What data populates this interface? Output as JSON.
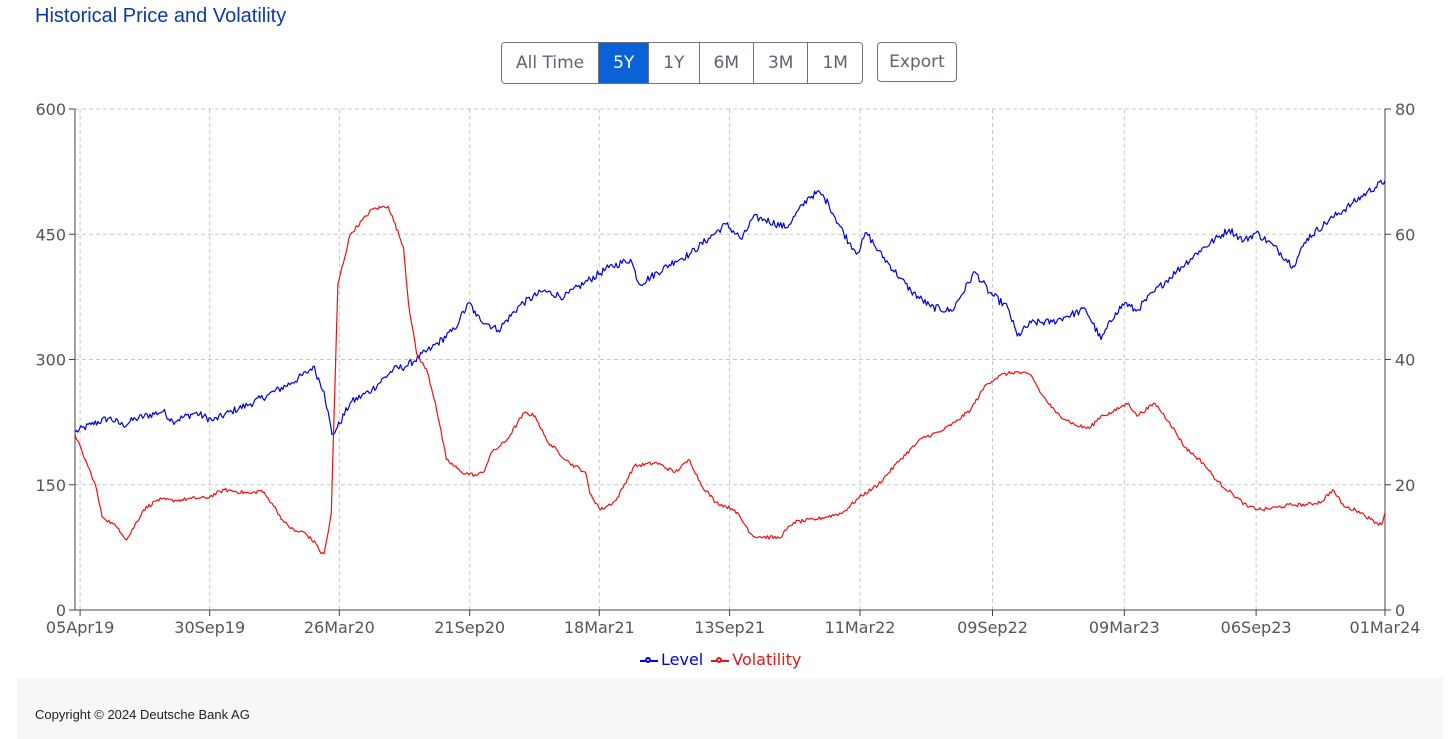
{
  "page": {
    "title": "Historical Price and Volatility"
  },
  "toolbar": {
    "ranges": [
      {
        "label": "All Time",
        "active": false
      },
      {
        "label": "5Y",
        "active": true
      },
      {
        "label": "1Y",
        "active": false
      },
      {
        "label": "6M",
        "active": false
      },
      {
        "label": "3M",
        "active": false
      },
      {
        "label": "1M",
        "active": false
      }
    ],
    "export_label": "Export"
  },
  "footer": {
    "copyright": "Copyright © 2024 Deutsche Bank AG"
  },
  "colors": {
    "level": "#0000dd",
    "volatility": "#ee1111",
    "active_button": "#0b62d6",
    "title": "#0a3aa8"
  },
  "chart_data": {
    "type": "line",
    "title": "Historical Price and Volatility",
    "x_type": "date",
    "x_range": [
      "2019-03-29",
      "2024-03-01"
    ],
    "x_ticks": [
      {
        "date": "2019-04-05",
        "label": "05Apr19"
      },
      {
        "date": "2019-09-30",
        "label": "30Sep19"
      },
      {
        "date": "2020-03-26",
        "label": "26Mar20"
      },
      {
        "date": "2020-09-21",
        "label": "21Sep20"
      },
      {
        "date": "2021-03-18",
        "label": "18Mar21"
      },
      {
        "date": "2021-09-13",
        "label": "13Sep21"
      },
      {
        "date": "2022-03-11",
        "label": "11Mar22"
      },
      {
        "date": "2022-09-09",
        "label": "09Sep22"
      },
      {
        "date": "2023-03-09",
        "label": "09Mar23"
      },
      {
        "date": "2023-09-06",
        "label": "06Sep23"
      },
      {
        "date": "2024-03-01",
        "label": "01Mar24"
      }
    ],
    "y_left": {
      "range": [
        0,
        600
      ],
      "ticks": [
        0,
        150,
        300,
        450,
        600
      ]
    },
    "y_right": {
      "range": [
        0,
        80
      ],
      "ticks": [
        0,
        20,
        40,
        60,
        80
      ]
    },
    "grid": true,
    "legend_position": "bottom-center",
    "series": [
      {
        "name": "Level",
        "axis": "left",
        "points": [
          [
            "2019-03-29",
            213
          ],
          [
            "2019-04-20",
            222
          ],
          [
            "2019-05-15",
            230
          ],
          [
            "2019-06-03",
            221
          ],
          [
            "2019-06-20",
            229
          ],
          [
            "2019-07-28",
            238
          ],
          [
            "2019-08-10",
            226
          ],
          [
            "2019-09-10",
            236
          ],
          [
            "2019-10-05",
            227
          ],
          [
            "2019-10-30",
            238
          ],
          [
            "2019-11-25",
            247
          ],
          [
            "2019-12-20",
            258
          ],
          [
            "2020-01-20",
            272
          ],
          [
            "2020-02-10",
            284
          ],
          [
            "2020-02-19",
            292
          ],
          [
            "2020-03-05",
            262
          ],
          [
            "2020-03-16",
            210
          ],
          [
            "2020-03-23",
            218
          ],
          [
            "2020-04-10",
            248
          ],
          [
            "2020-05-10",
            264
          ],
          [
            "2020-06-08",
            288
          ],
          [
            "2020-06-26",
            292
          ],
          [
            "2020-07-31",
            314
          ],
          [
            "2020-08-31",
            336
          ],
          [
            "2020-09-08",
            350
          ],
          [
            "2020-09-21",
            368
          ],
          [
            "2020-09-30",
            352
          ],
          [
            "2020-10-30",
            335
          ],
          [
            "2020-11-30",
            366
          ],
          [
            "2020-12-31",
            382
          ],
          [
            "2021-01-29",
            375
          ],
          [
            "2021-02-26",
            392
          ],
          [
            "2021-03-31",
            410
          ],
          [
            "2021-04-30",
            420
          ],
          [
            "2021-05-12",
            390
          ],
          [
            "2021-06-30",
            418
          ],
          [
            "2021-07-20",
            426
          ],
          [
            "2021-08-15",
            445
          ],
          [
            "2021-09-08",
            462
          ],
          [
            "2021-09-30",
            444
          ],
          [
            "2021-10-15",
            470
          ],
          [
            "2021-10-30",
            468
          ],
          [
            "2021-11-30",
            458
          ],
          [
            "2021-12-31",
            495
          ],
          [
            "2022-01-15",
            500
          ],
          [
            "2022-01-27",
            486
          ],
          [
            "2022-02-05",
            470
          ],
          [
            "2022-02-24",
            440
          ],
          [
            "2022-03-08",
            428
          ],
          [
            "2022-03-20",
            452
          ],
          [
            "2022-04-05",
            430
          ],
          [
            "2022-05-05",
            398
          ],
          [
            "2022-05-20",
            382
          ],
          [
            "2022-06-16",
            363
          ],
          [
            "2022-07-15",
            358
          ],
          [
            "2022-08-16",
            405
          ],
          [
            "2022-09-05",
            380
          ],
          [
            "2022-09-30",
            362
          ],
          [
            "2022-10-13",
            328
          ],
          [
            "2022-11-01",
            344
          ],
          [
            "2022-11-30",
            345
          ],
          [
            "2022-12-20",
            352
          ],
          [
            "2023-01-15",
            360
          ],
          [
            "2023-02-05",
            324
          ],
          [
            "2023-02-25",
            356
          ],
          [
            "2023-03-10",
            368
          ],
          [
            "2023-03-25",
            358
          ],
          [
            "2023-04-20",
            382
          ],
          [
            "2023-05-20",
            406
          ],
          [
            "2023-06-20",
            430
          ],
          [
            "2023-07-31",
            456
          ],
          [
            "2023-08-20",
            442
          ],
          [
            "2023-09-06",
            452
          ],
          [
            "2023-09-30",
            436
          ],
          [
            "2023-10-27",
            412
          ],
          [
            "2023-11-15",
            445
          ],
          [
            "2023-12-20",
            470
          ],
          [
            "2024-01-15",
            486
          ],
          [
            "2024-02-05",
            500
          ],
          [
            "2024-03-01",
            514
          ]
        ]
      },
      {
        "name": "Volatility",
        "axis": "right",
        "points": [
          [
            "2019-03-29",
            28
          ],
          [
            "2019-04-12",
            24
          ],
          [
            "2019-04-26",
            20
          ],
          [
            "2019-05-05",
            15
          ],
          [
            "2019-05-28",
            13
          ],
          [
            "2019-06-08",
            11.2
          ],
          [
            "2019-07-01",
            16
          ],
          [
            "2019-07-20",
            17.6
          ],
          [
            "2019-08-15",
            17.5
          ],
          [
            "2019-09-05",
            17.8
          ],
          [
            "2019-09-26",
            17.9
          ],
          [
            "2019-10-20",
            19.2
          ],
          [
            "2019-11-25",
            18.6
          ],
          [
            "2019-12-10",
            19.1
          ],
          [
            "2019-12-25",
            17
          ],
          [
            "2020-01-10",
            14
          ],
          [
            "2020-01-25",
            12.6
          ],
          [
            "2020-02-07",
            12.4
          ],
          [
            "2020-02-25",
            10.3
          ],
          [
            "2020-03-01",
            9
          ],
          [
            "2020-03-05",
            9
          ],
          [
            "2020-03-10",
            12
          ],
          [
            "2020-03-15",
            15.5
          ],
          [
            "2020-03-20",
            36
          ],
          [
            "2020-03-24",
            52
          ],
          [
            "2020-04-10",
            60
          ],
          [
            "2020-05-10",
            64
          ],
          [
            "2020-06-01",
            64.5
          ],
          [
            "2020-06-22",
            58
          ],
          [
            "2020-06-29",
            49
          ],
          [
            "2020-07-10",
            41
          ],
          [
            "2020-07-25",
            38
          ],
          [
            "2020-08-05",
            33
          ],
          [
            "2020-08-20",
            24
          ],
          [
            "2020-09-10",
            22
          ],
          [
            "2020-09-30",
            21.5
          ],
          [
            "2020-10-10",
            22
          ],
          [
            "2020-10-20",
            25
          ],
          [
            "2020-11-10",
            27
          ],
          [
            "2020-12-05",
            31.5
          ],
          [
            "2020-12-20",
            31
          ],
          [
            "2021-01-05",
            27
          ],
          [
            "2021-02-05",
            23.5
          ],
          [
            "2021-02-27",
            22
          ],
          [
            "2021-03-05",
            18.6
          ],
          [
            "2021-03-20",
            16
          ],
          [
            "2021-04-10",
            17.5
          ],
          [
            "2021-05-05",
            23
          ],
          [
            "2021-06-05",
            23.5
          ],
          [
            "2021-06-30",
            22
          ],
          [
            "2021-07-20",
            24
          ],
          [
            "2021-08-05",
            20
          ],
          [
            "2021-08-25",
            17.2
          ],
          [
            "2021-09-20",
            16
          ],
          [
            "2021-10-15",
            11.8
          ],
          [
            "2021-11-20",
            11.5
          ],
          [
            "2021-12-10",
            14
          ],
          [
            "2022-01-10",
            14.5
          ],
          [
            "2022-02-15",
            15.5
          ],
          [
            "2022-03-10",
            18
          ],
          [
            "2022-04-05",
            20
          ],
          [
            "2022-05-05",
            24
          ],
          [
            "2022-06-05",
            27.5
          ],
          [
            "2022-06-30",
            28.5
          ],
          [
            "2022-07-20",
            30
          ],
          [
            "2022-08-10",
            32
          ],
          [
            "2022-08-31",
            36
          ],
          [
            "2022-09-20",
            37.5
          ],
          [
            "2022-10-10",
            38
          ],
          [
            "2022-11-01",
            37.5
          ],
          [
            "2022-11-15",
            34.5
          ],
          [
            "2022-12-05",
            31.5
          ],
          [
            "2023-01-01",
            29.5
          ],
          [
            "2023-01-20",
            29
          ],
          [
            "2023-02-05",
            31
          ],
          [
            "2023-02-20",
            31.5
          ],
          [
            "2023-03-05",
            32.5
          ],
          [
            "2023-03-15",
            33
          ],
          [
            "2023-03-26",
            31
          ],
          [
            "2023-04-20",
            33
          ],
          [
            "2023-05-10",
            30
          ],
          [
            "2023-05-31",
            26
          ],
          [
            "2023-06-15",
            24.5
          ],
          [
            "2023-06-25",
            23.5
          ],
          [
            "2023-07-15",
            20.5
          ],
          [
            "2023-08-05",
            18.5
          ],
          [
            "2023-08-25",
            16.5
          ],
          [
            "2023-09-15",
            16
          ],
          [
            "2023-10-05",
            16.4
          ],
          [
            "2023-10-25",
            16.8
          ],
          [
            "2023-11-15",
            16.8
          ],
          [
            "2023-12-05",
            17.3
          ],
          [
            "2023-12-20",
            19.2
          ],
          [
            "2024-01-05",
            16.5
          ],
          [
            "2024-01-25",
            15.8
          ],
          [
            "2024-02-10",
            14.5
          ],
          [
            "2024-02-25",
            13.6
          ],
          [
            "2024-03-01",
            15.5
          ]
        ]
      }
    ]
  }
}
